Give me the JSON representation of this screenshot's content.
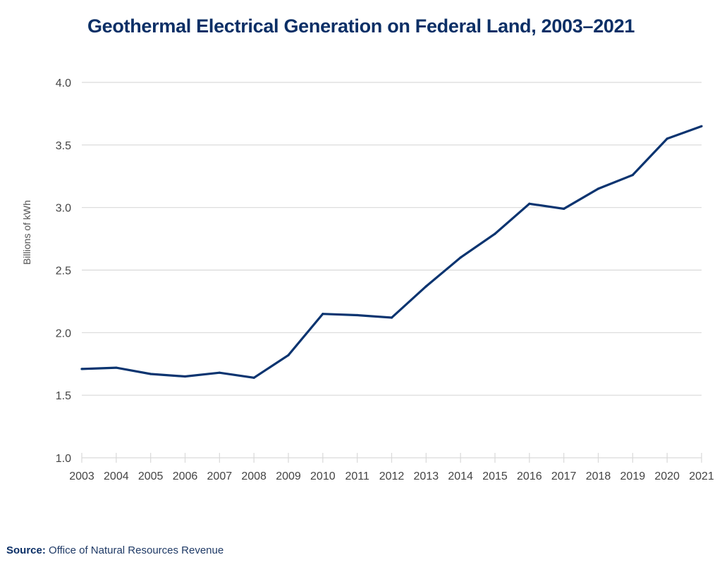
{
  "chart_data": {
    "type": "line",
    "title": "Geothermal Electrical Generation on Federal Land, 2003–2021",
    "xlabel": "",
    "ylabel": "Billions of kWh",
    "x": [
      "2003",
      "2004",
      "2005",
      "2006",
      "2007",
      "2008",
      "2009",
      "2010",
      "2011",
      "2012",
      "2013",
      "2014",
      "2015",
      "2016",
      "2017",
      "2018",
      "2019",
      "2020",
      "2021"
    ],
    "series": [
      {
        "name": "Geothermal generation",
        "color": "#0b3470",
        "values": [
          1.71,
          1.72,
          1.67,
          1.65,
          1.68,
          1.64,
          1.82,
          2.15,
          2.14,
          2.12,
          2.37,
          2.6,
          2.79,
          3.03,
          2.99,
          3.15,
          3.26,
          3.55,
          3.65
        ]
      }
    ],
    "ylim": [
      1.0,
      4.0
    ],
    "yticks": [
      "1.0",
      "1.5",
      "2.0",
      "2.5",
      "3.0",
      "3.5",
      "4.0"
    ],
    "grid": true,
    "legend": "none"
  },
  "source": {
    "label": "Source:",
    "text": "Office of Natural Resources Revenue"
  },
  "colors": {
    "title": "#0b2f66",
    "line": "#0b3470",
    "grid": "#d9d9d9",
    "tick_text": "#444444"
  }
}
